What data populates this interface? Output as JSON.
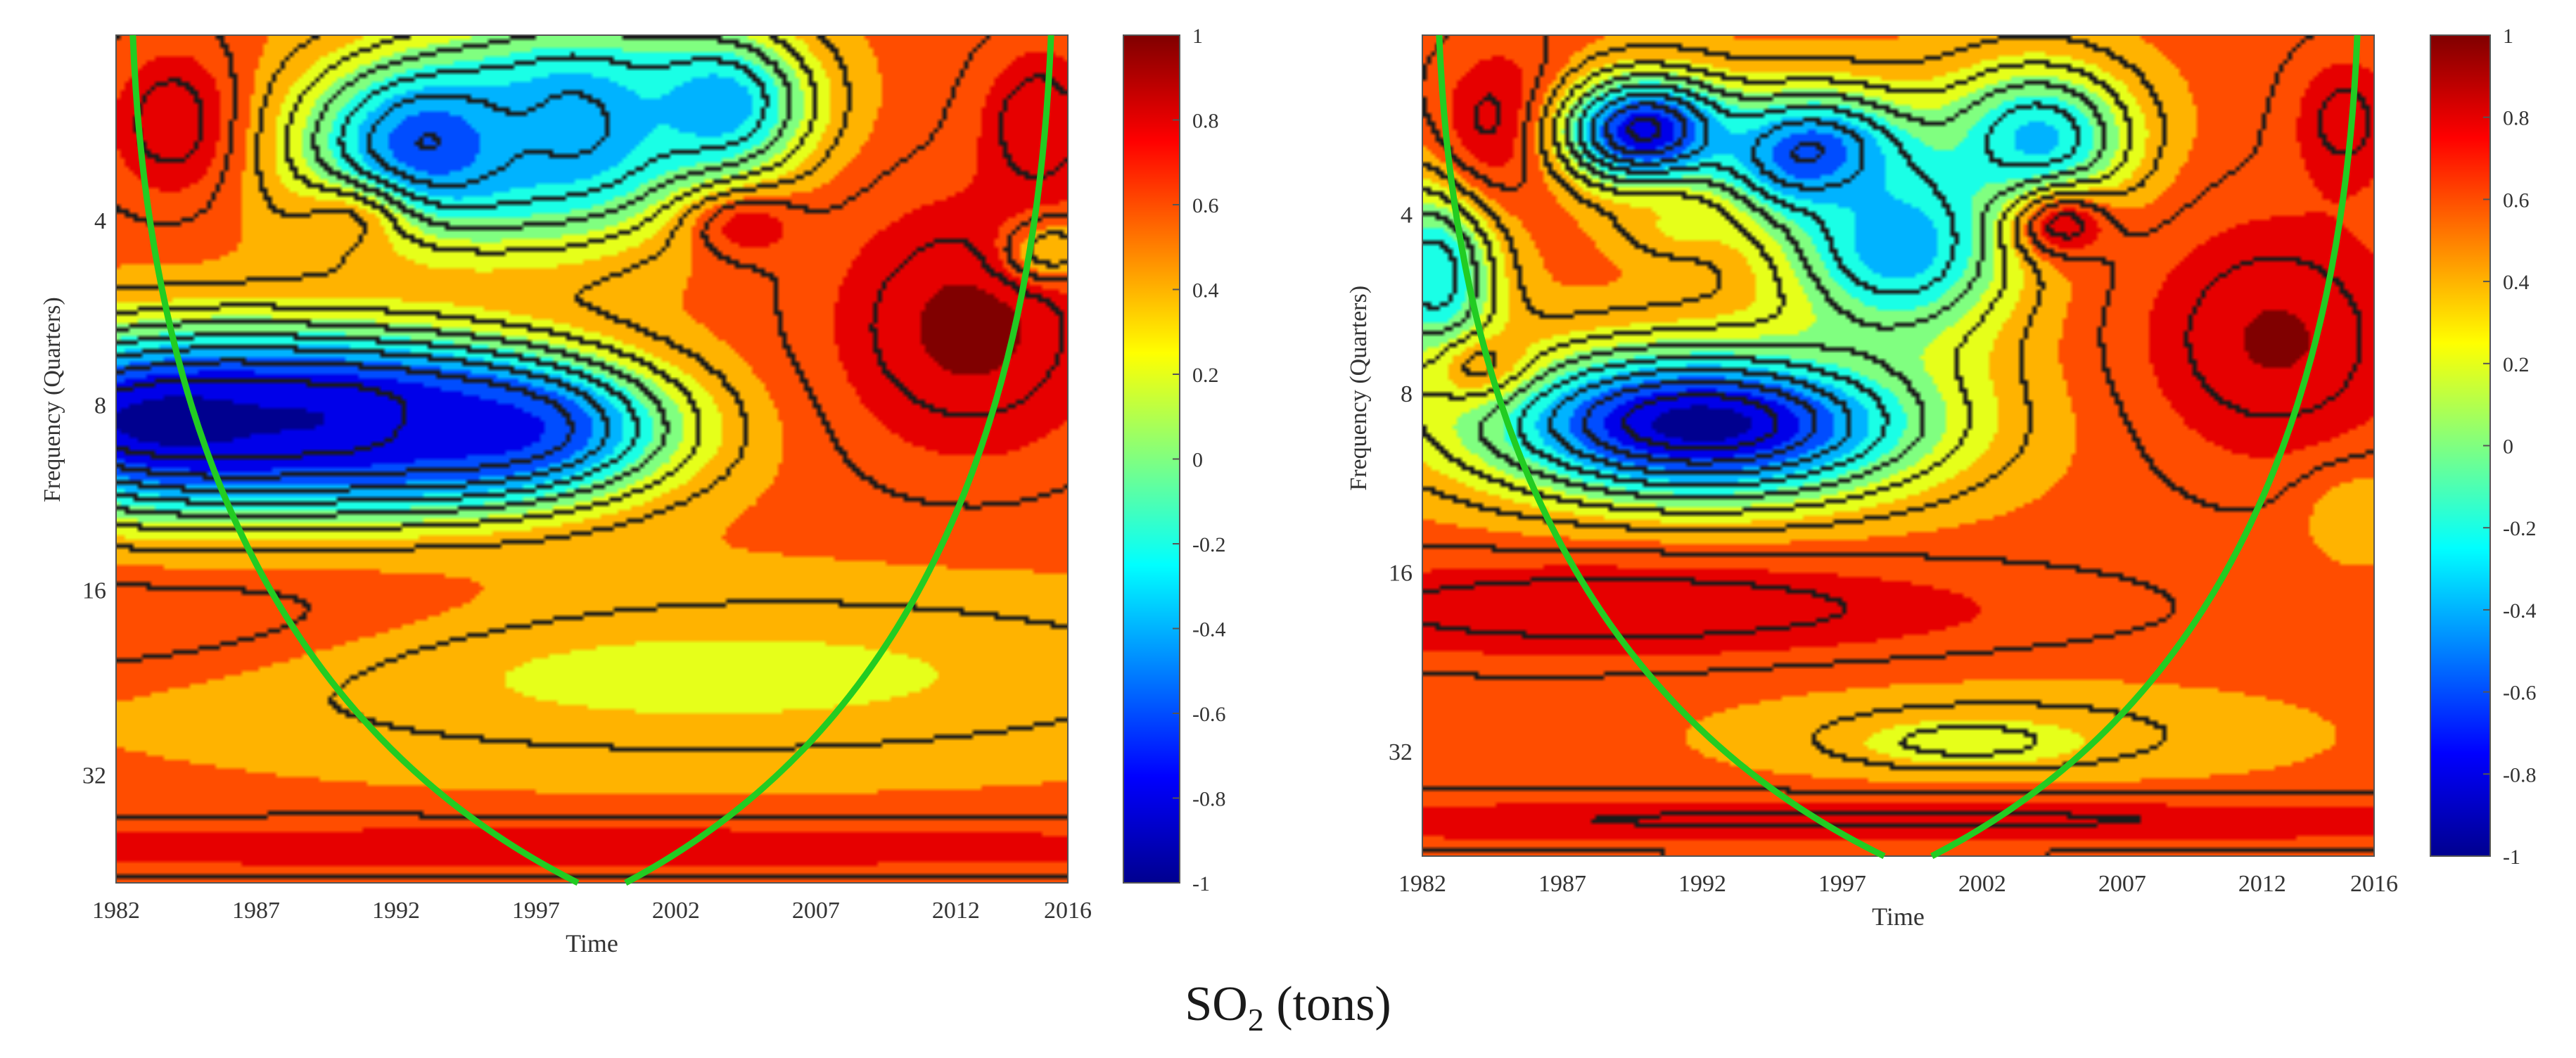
{
  "figure": {
    "caption": {
      "main": "SO",
      "sub": "2",
      "rest": " (tons)"
    }
  },
  "colormap": [
    "#00008f",
    "#0000ff",
    "#0080ff",
    "#00ffff",
    "#80ff80",
    "#ffff00",
    "#ff8000",
    "#ff0000",
    "#800000"
  ],
  "contour_line_color": "#1a1a1a",
  "cone_color": "#22cc22",
  "chart_data": [
    {
      "type": "heatmap",
      "panel": "left",
      "xlabel": "Time",
      "ylabel": "Frequency (Quarters)",
      "x_ticks": [
        "1982",
        "1987",
        "1992",
        "1997",
        "2002",
        "2007",
        "2012",
        "2016"
      ],
      "y_ticks": [
        "4",
        "8",
        "16",
        "32"
      ],
      "xlim": [
        1982,
        2016
      ],
      "ylim_period": [
        2,
        48
      ],
      "colorbar": {
        "ticks": [
          "1",
          "0.8",
          "0.6",
          "0.4",
          "0.2",
          "0",
          "-0.2",
          "-0.4",
          "-0.6",
          "-0.8",
          "-1"
        ],
        "range": [
          -1,
          1
        ]
      },
      "cone_of_influence": {
        "left_end_year": 1998.5,
        "right_start_year": 2000.2
      },
      "features": [
        {
          "t": 1983.8,
          "p": 8.5,
          "v": -0.95,
          "wt": 5.2,
          "wp": 0.32
        },
        {
          "t": 1984.3,
          "p": 2.8,
          "v": 0.92,
          "wt": 1.8,
          "wp": 0.3
        },
        {
          "t": 1990.5,
          "p": 8.5,
          "v": -0.98,
          "wt": 5.8,
          "wp": 0.3
        },
        {
          "t": 1995.5,
          "p": 8.8,
          "v": -0.75,
          "wt": 4.0,
          "wp": 0.25
        },
        {
          "t": 1993.5,
          "p": 3.0,
          "v": -0.65,
          "wt": 3.5,
          "wp": 0.35
        },
        {
          "t": 1998.5,
          "p": 2.8,
          "v": -0.45,
          "wt": 3.0,
          "wp": 0.4
        },
        {
          "t": 1990.0,
          "p": 4.1,
          "v": 0.45,
          "wt": 1.5,
          "wp": 0.14
        },
        {
          "t": 2004.5,
          "p": 4.0,
          "v": 0.88,
          "wt": 1.4,
          "wp": 0.14
        },
        {
          "t": 2003.5,
          "p": 2.6,
          "v": -0.4,
          "wt": 2.5,
          "wp": 0.3
        },
        {
          "t": 2012.5,
          "p": 6.0,
          "v": 0.95,
          "wt": 3.5,
          "wp": 0.5
        },
        {
          "t": 2015.0,
          "p": 2.8,
          "v": 0.9,
          "wt": 1.5,
          "wp": 0.3
        },
        {
          "t": 2015.5,
          "p": 4.5,
          "v": 0.3,
          "wt": 1.2,
          "wp": 0.12
        },
        {
          "t": 1987.0,
          "p": 19.0,
          "v": 0.88,
          "wt": 9.0,
          "wp": 0.2
        },
        {
          "t": 2003.0,
          "p": 22.0,
          "v": 0.25,
          "wt": 14.0,
          "wp": 0.35
        },
        {
          "t": 1998.0,
          "p": 42.0,
          "v": 0.8,
          "wt": 25.0,
          "wp": 0.1
        }
      ]
    },
    {
      "type": "heatmap",
      "panel": "right",
      "xlabel": "Time",
      "ylabel": "Frequency (Quarters)",
      "x_ticks": [
        "1982",
        "1987",
        "1992",
        "1997",
        "2002",
        "2007",
        "2012",
        "2016"
      ],
      "y_ticks": [
        "4",
        "8",
        "16",
        "32"
      ],
      "xlim": [
        1982,
        2016
      ],
      "ylim_period": [
        2,
        48
      ],
      "colorbar": {
        "ticks": [
          "1",
          "0.8",
          "0.6",
          "0.4",
          "0.2",
          "0",
          "-0.2",
          "-0.4",
          "-0.6",
          "-0.8",
          "-1"
        ],
        "range": [
          -1,
          1
        ]
      },
      "cone_of_influence": {
        "left_end_year": 1998.5,
        "right_start_year": 2000.2
      },
      "features": [
        {
          "t": 1982.5,
          "p": 5.0,
          "v": -0.3,
          "wt": 1.6,
          "wp": 0.4
        },
        {
          "t": 1985.0,
          "p": 2.8,
          "v": 0.9,
          "wt": 1.8,
          "wp": 0.3
        },
        {
          "t": 1984.5,
          "p": 7.5,
          "v": 0.85,
          "wt": 1.4,
          "wp": 0.14
        },
        {
          "t": 1990.0,
          "p": 2.9,
          "v": -0.85,
          "wt": 2.2,
          "wp": 0.22
        },
        {
          "t": 1992.0,
          "p": 9.0,
          "v": -0.98,
          "wt": 5.5,
          "wp": 0.3
        },
        {
          "t": 1996.0,
          "p": 3.2,
          "v": -0.7,
          "wt": 2.5,
          "wp": 0.25
        },
        {
          "t": 1991.0,
          "p": 4.2,
          "v": 0.3,
          "wt": 1.5,
          "wp": 0.14
        },
        {
          "t": 1999.0,
          "p": 4.5,
          "v": -0.4,
          "wt": 3.0,
          "wp": 0.4
        },
        {
          "t": 2004.0,
          "p": 3.0,
          "v": -0.35,
          "wt": 2.5,
          "wp": 0.3
        },
        {
          "t": 2005.0,
          "p": 4.2,
          "v": 0.85,
          "wt": 1.3,
          "wp": 0.14
        },
        {
          "t": 2012.5,
          "p": 6.5,
          "v": 0.92,
          "wt": 3.5,
          "wp": 0.5
        },
        {
          "t": 2015.0,
          "p": 2.8,
          "v": 0.85,
          "wt": 1.4,
          "wp": 0.28
        },
        {
          "t": 2015.5,
          "p": 13.0,
          "v": 0.4,
          "wt": 1.5,
          "wp": 0.2
        },
        {
          "t": 1989.0,
          "p": 18.5,
          "v": 0.9,
          "wt": 10.0,
          "wp": 0.2
        },
        {
          "t": 2003.0,
          "p": 30.0,
          "v": 0.35,
          "wt": 7.0,
          "wp": 0.2
        },
        {
          "t": 2001.5,
          "p": 31.0,
          "v": 0.1,
          "wt": 2.5,
          "wp": 0.08
        },
        {
          "t": 1998.0,
          "p": 42.0,
          "v": 0.82,
          "wt": 25.0,
          "wp": 0.1
        }
      ]
    }
  ]
}
